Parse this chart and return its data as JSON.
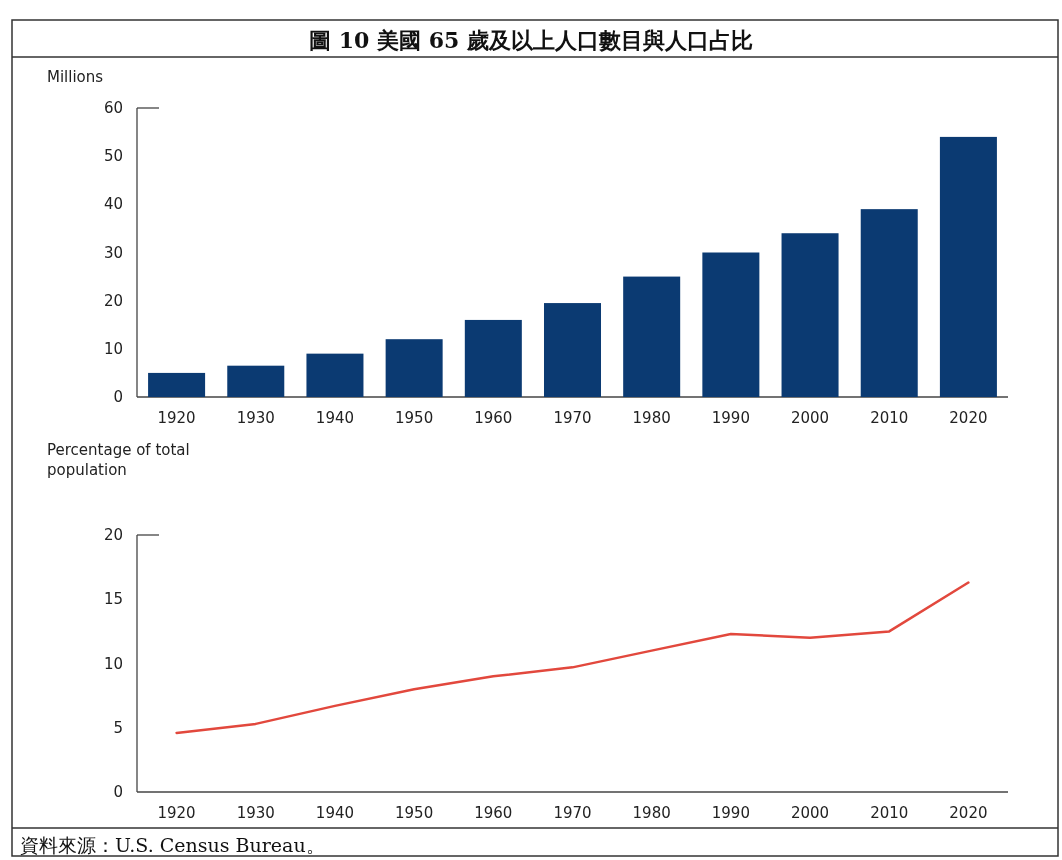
{
  "chart_data": [
    {
      "type": "bar",
      "title": "圖 10 美國 65 歲及以上人口數目與人口占比",
      "ylabel": "Millions",
      "categories": [
        "1920",
        "1930",
        "1940",
        "1950",
        "1960",
        "1970",
        "1980",
        "1990",
        "2000",
        "2010",
        "2020"
      ],
      "values": [
        5,
        6.5,
        9,
        12,
        16,
        19.5,
        25,
        30,
        34,
        39,
        54
      ],
      "color": "#0b3a72",
      "ylim": [
        0,
        60
      ],
      "yticks": [
        0,
        10,
        20,
        30,
        40,
        50,
        60
      ],
      "grid": false
    },
    {
      "type": "line",
      "ylabel": "Percentage of total population",
      "categories": [
        "1920",
        "1930",
        "1940",
        "1950",
        "1960",
        "1970",
        "1980",
        "1990",
        "2000",
        "2010",
        "2020"
      ],
      "values": [
        4.6,
        5.3,
        6.7,
        8,
        9,
        9.7,
        11,
        12.3,
        12,
        12.5,
        16.3
      ],
      "color": "#e2483d",
      "ylim": [
        0,
        20
      ],
      "yticks": [
        0,
        5,
        10,
        15,
        20
      ],
      "grid": false,
      "marker": "none",
      "line_style": "solid",
      "annotations": [
        "資料來源：U.S. Census Bureau。"
      ]
    }
  ]
}
